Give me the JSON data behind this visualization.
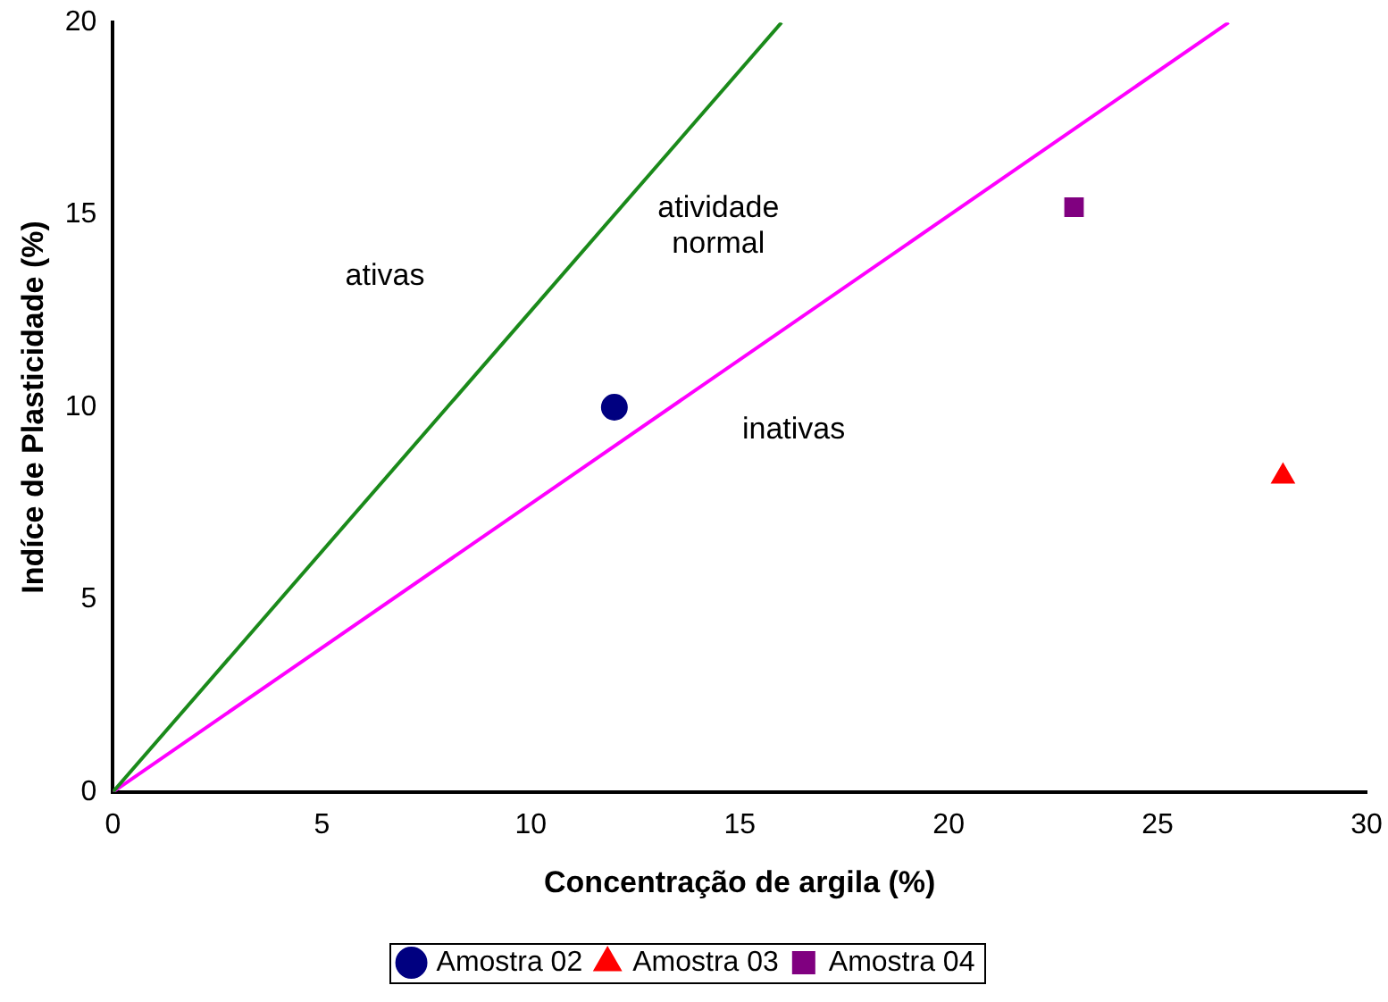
{
  "chart_data": {
    "type": "scatter",
    "xlabel": "Concentração de argila (%)",
    "ylabel": "Indíce de Plasticidade (%)",
    "xlim": [
      0,
      30
    ],
    "xticks": [
      0,
      5,
      10,
      15,
      20,
      25,
      30
    ],
    "ylim": [
      0,
      20
    ],
    "yticks": [
      0,
      5,
      10,
      15,
      20
    ],
    "grid": false,
    "legend": "bottom",
    "series": [
      {
        "type": "line",
        "color": "#1a8a1a",
        "x": [
          0,
          16
        ],
        "values": [
          0,
          20
        ],
        "marker": "none"
      },
      {
        "type": "line",
        "color": "#ff00ff",
        "x": [
          0,
          26.7
        ],
        "values": [
          0,
          20
        ],
        "marker": "none"
      },
      {
        "name": "Amostra 02",
        "color": "#000080",
        "x": [
          12
        ],
        "values": [
          10
        ],
        "marker": "circle"
      },
      {
        "name": "Amostra 03",
        "color": "#ff0000",
        "x": [
          28
        ],
        "values": [
          8.2
        ],
        "marker": "triangle"
      },
      {
        "name": "Amostra 04",
        "color": "#800080",
        "x": [
          23
        ],
        "values": [
          15.2
        ],
        "marker": "square"
      }
    ],
    "annotations": [
      "ativas",
      "atividade\nnormal",
      "inativas"
    ]
  }
}
